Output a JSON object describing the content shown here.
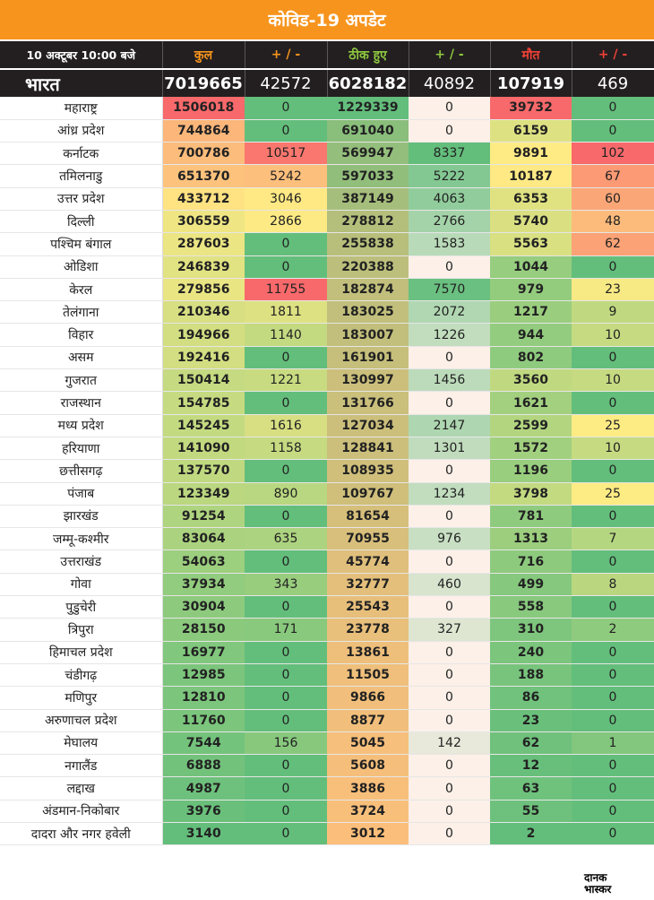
{
  "title": "कोविड-19 अपडेट",
  "header": {
    "date_label": "10 अक्टूबर 10:00 बजे",
    "columns": [
      "कुल",
      "+ / -",
      "ठीक हुए",
      "+ / -",
      "मौत",
      "+ / -"
    ],
    "column_colors": [
      "#f7941d",
      "#f7941d",
      "#8dc63f",
      "#8dc63f",
      "#ef4136",
      "#ef4136"
    ]
  },
  "chart_data": {
    "type": "table",
    "title": "कोविड-19 अपडेट",
    "columns": [
      "कुल",
      "+ / -",
      "ठीक हुए",
      "+ / -",
      "मौत",
      "+ / -"
    ],
    "total": {
      "state": "भारत",
      "values": [
        7019665,
        42572,
        6028182,
        40892,
        107919,
        469
      ]
    },
    "rows": [
      {
        "state": "महाराष्ट्र",
        "values": [
          1506018,
          0,
          1229339,
          0,
          39732,
          0
        ]
      },
      {
        "state": "आंध्र प्रदेश",
        "values": [
          744864,
          0,
          691040,
          0,
          6159,
          0
        ]
      },
      {
        "state": "कर्नाटक",
        "values": [
          700786,
          10517,
          569947,
          8337,
          9891,
          102
        ]
      },
      {
        "state": "तमिलनाडु",
        "values": [
          651370,
          5242,
          597033,
          5222,
          10187,
          67
        ]
      },
      {
        "state": "उत्तर प्रदेश",
        "values": [
          433712,
          3046,
          387149,
          4063,
          6353,
          60
        ]
      },
      {
        "state": "दिल्ली",
        "values": [
          306559,
          2866,
          278812,
          2766,
          5740,
          48
        ]
      },
      {
        "state": "पश्चिम बंगाल",
        "values": [
          287603,
          0,
          255838,
          1583,
          5563,
          62
        ]
      },
      {
        "state": "ओडिशा",
        "values": [
          246839,
          0,
          220388,
          0,
          1044,
          0
        ]
      },
      {
        "state": "केरल",
        "values": [
          279856,
          11755,
          182874,
          7570,
          979,
          23
        ]
      },
      {
        "state": "तेलंगाना",
        "values": [
          210346,
          1811,
          183025,
          2072,
          1217,
          9
        ]
      },
      {
        "state": "विहार",
        "values": [
          194966,
          1140,
          183007,
          1226,
          944,
          10
        ]
      },
      {
        "state": "असम",
        "values": [
          192416,
          0,
          161901,
          0,
          802,
          0
        ]
      },
      {
        "state": "गुजरात",
        "values": [
          150414,
          1221,
          130997,
          1456,
          3560,
          10
        ]
      },
      {
        "state": "राजस्थान",
        "values": [
          154785,
          0,
          131766,
          0,
          1621,
          0
        ]
      },
      {
        "state": "मध्य प्रदेश",
        "values": [
          145245,
          1616,
          127034,
          2147,
          2599,
          25
        ]
      },
      {
        "state": "हरियाणा",
        "values": [
          141090,
          1158,
          128841,
          1301,
          1572,
          10
        ]
      },
      {
        "state": "छत्तीसगढ़",
        "values": [
          137570,
          0,
          108935,
          0,
          1196,
          0
        ]
      },
      {
        "state": "पंजाब",
        "values": [
          123349,
          890,
          109767,
          1234,
          3798,
          25
        ]
      },
      {
        "state": "झारखंड",
        "values": [
          91254,
          0,
          81654,
          0,
          781,
          0
        ]
      },
      {
        "state": "जम्मू-कश्मीर",
        "values": [
          83064,
          635,
          70955,
          976,
          1313,
          7
        ]
      },
      {
        "state": "उत्तराखंड",
        "values": [
          54063,
          0,
          45774,
          0,
          716,
          0
        ]
      },
      {
        "state": "गोवा",
        "values": [
          37934,
          343,
          32777,
          460,
          499,
          8
        ]
      },
      {
        "state": "पुडुचेरी",
        "values": [
          30904,
          0,
          25543,
          0,
          558,
          0
        ]
      },
      {
        "state": "त्रिपुरा",
        "values": [
          28150,
          171,
          23778,
          327,
          310,
          2
        ]
      },
      {
        "state": "हिमाचल प्रदेश",
        "values": [
          16977,
          0,
          13861,
          0,
          240,
          0
        ]
      },
      {
        "state": "चंडीगढ़",
        "values": [
          12985,
          0,
          11505,
          0,
          188,
          0
        ]
      },
      {
        "state": "मणिपुर",
        "values": [
          12810,
          0,
          9866,
          0,
          86,
          0
        ]
      },
      {
        "state": "अरुणाचल प्रदेश",
        "values": [
          11760,
          0,
          8877,
          0,
          23,
          0
        ]
      },
      {
        "state": "मेघालय",
        "values": [
          7544,
          156,
          5045,
          142,
          62,
          1
        ]
      },
      {
        "state": "नगालैंड",
        "values": [
          6888,
          0,
          5608,
          0,
          12,
          0
        ]
      },
      {
        "state": "लद्दाख",
        "values": [
          4987,
          0,
          3886,
          0,
          63,
          0
        ]
      },
      {
        "state": "अंडमान-निकोबार",
        "values": [
          3976,
          0,
          3724,
          0,
          55,
          0
        ]
      },
      {
        "state": "दादरा और नगर हवेली",
        "values": [
          3140,
          0,
          3012,
          0,
          2,
          0
        ]
      }
    ],
    "color_scales": [
      [
        "#63be7b",
        "#ffeb84",
        "#f8696b"
      ],
      [
        "#63be7b",
        "#ffeb84",
        "#f8696b"
      ],
      [
        "#fcbf7b",
        "#63be7b"
      ],
      [
        "#fcf0e8",
        "#63be7b"
      ],
      [
        "#63be7b",
        "#ffeb84",
        "#f8696b"
      ],
      [
        "#63be7b",
        "#ffeb84",
        "#f8696b"
      ]
    ]
  },
  "logo": {
    "line1": "दानक",
    "line2": "भास्कर"
  }
}
